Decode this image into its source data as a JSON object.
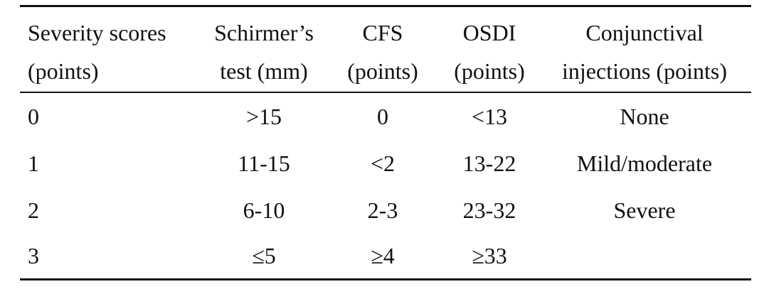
{
  "table": {
    "headers": [
      {
        "line1": "Severity scores",
        "line2": "(points)"
      },
      {
        "line1": "Schirmer’s",
        "line2": "test (mm)"
      },
      {
        "line1": "CFS",
        "line2": "(points)"
      },
      {
        "line1": "OSDI",
        "line2": "(points)"
      },
      {
        "line1": "Conjunctival",
        "line2": "injections (points)"
      }
    ],
    "rows": [
      [
        "0",
        ">15",
        "0",
        "<13",
        "None"
      ],
      [
        "1",
        "11-15",
        "<2",
        "13-22",
        "Mild/moderate"
      ],
      [
        "2",
        "6-10",
        "2-3",
        "23-32",
        "Severe"
      ],
      [
        "3",
        "≤5",
        "≥4",
        "≥33",
        ""
      ]
    ]
  }
}
